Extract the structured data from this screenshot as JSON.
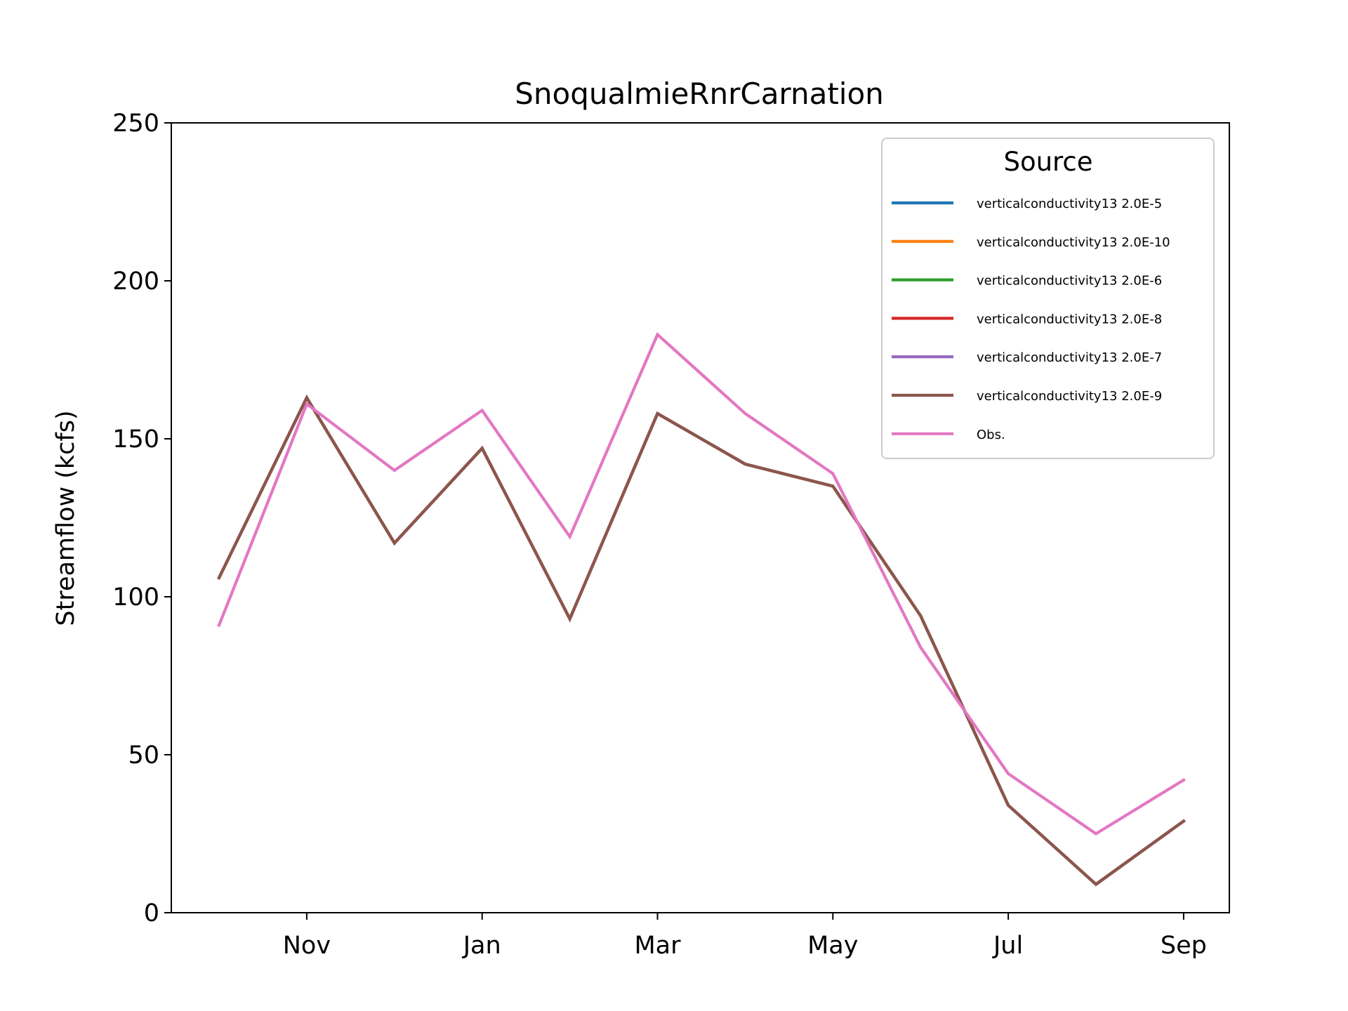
{
  "chart_data": {
    "type": "line",
    "title": "SnoqualmieRnrCarnation",
    "xlabel": "",
    "ylabel": "Streamflow (kcfs)",
    "ylim": [
      0,
      250
    ],
    "yticks": [
      0,
      50,
      100,
      150,
      200,
      250
    ],
    "x": [
      "Oct",
      "Nov",
      "Dec",
      "Jan",
      "Feb",
      "Mar",
      "Apr",
      "May",
      "Jun",
      "Jul",
      "Aug",
      "Sep"
    ],
    "xtick_labels": [
      "Nov",
      "Jan",
      "Mar",
      "May",
      "Jul",
      "Sep"
    ],
    "grid": false,
    "legend": {
      "title": "Source",
      "placement": "upper right"
    },
    "series": [
      {
        "name": "verticalconductivity13 2.0E-5",
        "color": "#1f77b4",
        "values": [
          106,
          163,
          117,
          147,
          93,
          158,
          142,
          135,
          94,
          34,
          9,
          29
        ]
      },
      {
        "name": "verticalconductivity13 2.0E-10",
        "color": "#ff7f0e",
        "values": [
          106,
          163,
          117,
          147,
          93,
          158,
          142,
          135,
          94,
          34,
          9,
          29
        ]
      },
      {
        "name": "verticalconductivity13 2.0E-6",
        "color": "#2ca02c",
        "values": [
          106,
          163,
          117,
          147,
          93,
          158,
          142,
          135,
          94,
          34,
          9,
          29
        ]
      },
      {
        "name": "verticalconductivity13 2.0E-8",
        "color": "#d62728",
        "values": [
          106,
          163,
          117,
          147,
          93,
          158,
          142,
          135,
          94,
          34,
          9,
          29
        ]
      },
      {
        "name": "verticalconductivity13 2.0E-7",
        "color": "#9467bd",
        "values": [
          106,
          163,
          117,
          147,
          93,
          158,
          142,
          135,
          94,
          34,
          9,
          29
        ]
      },
      {
        "name": "verticalconductivity13 2.0E-9",
        "color": "#8c564b",
        "values": [
          106,
          163,
          117,
          147,
          93,
          158,
          142,
          135,
          94,
          34,
          9,
          29
        ]
      },
      {
        "name": "Obs.",
        "color": "#e377c2",
        "values": [
          91,
          161,
          140,
          159,
          119,
          183,
          158,
          139,
          84,
          44,
          25,
          42
        ]
      }
    ]
  }
}
